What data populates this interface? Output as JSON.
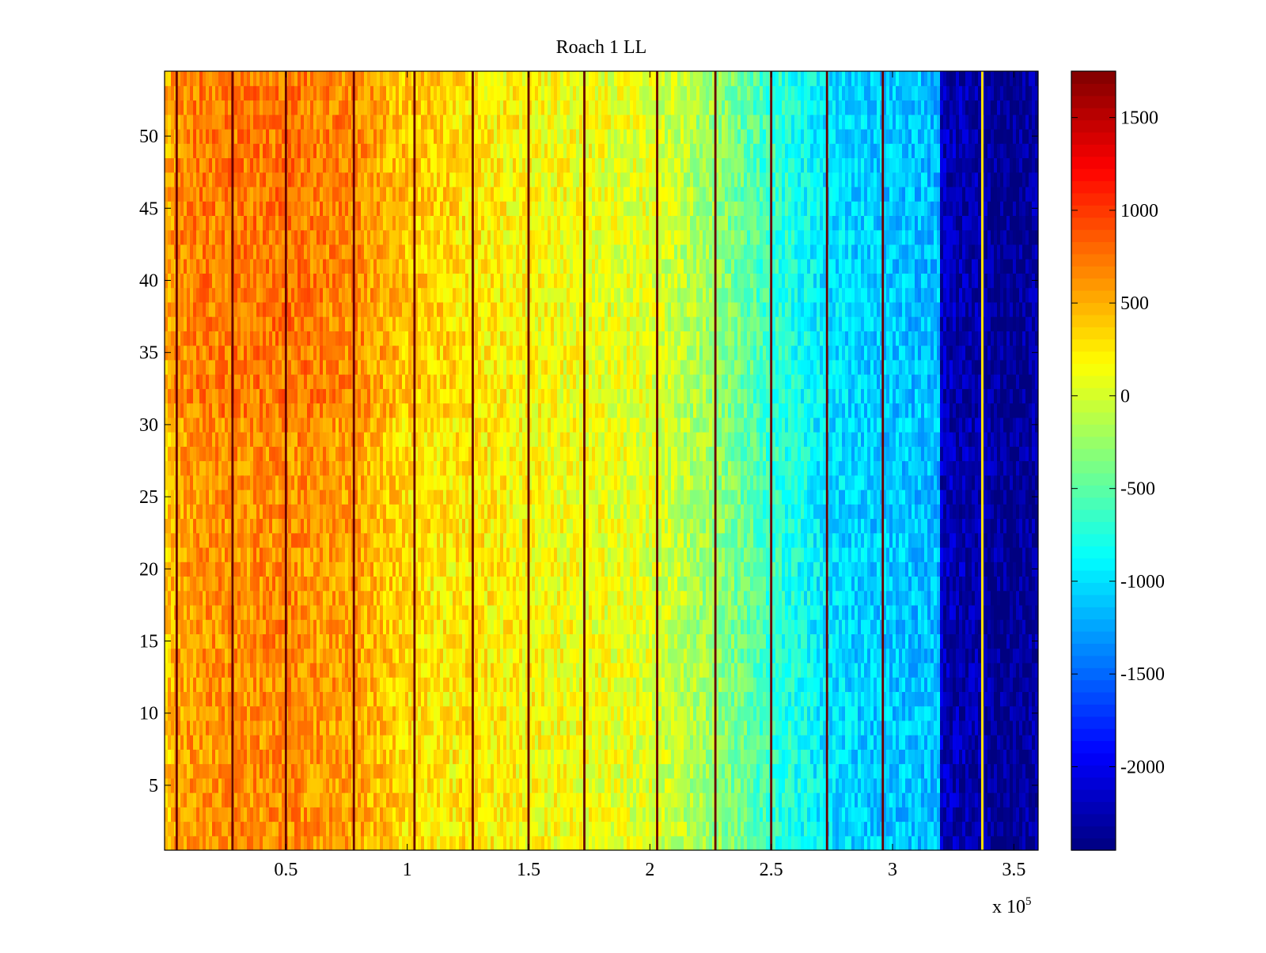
{
  "chart_data": {
    "type": "heatmap",
    "title": "Roach 1 LL",
    "xlabel": "",
    "ylabel": "",
    "x_multiplier_label": {
      "base": "x 10",
      "exponent": "5"
    },
    "xlim": [
      0,
      3.6
    ],
    "ylim": [
      0.5,
      54.5
    ],
    "x_ticks": [
      0.5,
      1,
      1.5,
      2,
      2.5,
      3,
      3.5
    ],
    "x_tick_labels": [
      "0.5",
      "1",
      "1.5",
      "2",
      "2.5",
      "3",
      "3.5"
    ],
    "y_ticks": [
      5,
      10,
      15,
      20,
      25,
      30,
      35,
      40,
      45,
      50
    ],
    "y_tick_labels": [
      "5",
      "10",
      "15",
      "20",
      "25",
      "30",
      "35",
      "40",
      "45",
      "50"
    ],
    "colorbar": {
      "colormap": "jet",
      "clim": [
        -2450,
        1750
      ],
      "ticks": [
        -2000,
        -1500,
        -1000,
        -500,
        0,
        500,
        1000,
        1500
      ],
      "tick_labels": [
        "-2000",
        "-1500",
        "-1000",
        "-500",
        "0",
        "500",
        "1000",
        "1500"
      ]
    },
    "rows": 54,
    "column_profile": {
      "x_in_1e5": [
        0.0,
        0.1,
        0.3,
        0.5,
        0.8,
        1.0,
        1.3,
        1.6,
        2.0,
        2.3,
        2.5,
        2.75,
        3.0,
        3.19,
        3.2,
        3.36,
        3.5,
        3.6
      ],
      "mean_value": [
        450,
        650,
        680,
        700,
        600,
        350,
        250,
        150,
        50,
        -300,
        -650,
        -1000,
        -1100,
        -1150,
        -2200,
        -2300,
        -2400,
        -2300
      ],
      "noise_amplitude": 250
    },
    "dark_vertical_lines_x_in_1e5": [
      0.05,
      0.28,
      0.5,
      0.78,
      1.03,
      1.27,
      1.5,
      1.73,
      2.03,
      2.27,
      2.5,
      2.73,
      2.96
    ],
    "highlight_line_x_in_1e5": 3.37,
    "highlight_line_value": 300
  }
}
